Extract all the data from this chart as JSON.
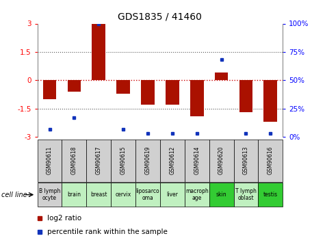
{
  "title": "GDS1835 / 41460",
  "samples": [
    "GSM90611",
    "GSM90618",
    "GSM90617",
    "GSM90615",
    "GSM90619",
    "GSM90612",
    "GSM90614",
    "GSM90620",
    "GSM90613",
    "GSM90616"
  ],
  "cell_lines": [
    "B lymph\nocyte",
    "brain",
    "breast",
    "cervix",
    "liposarco\noma",
    "liver",
    "macroph\nage",
    "skin",
    "T lymph\noblast",
    "testis"
  ],
  "cell_line_colors": [
    "#d0d0d0",
    "#c0f0c0",
    "#c0f0c0",
    "#c0f0c0",
    "#c0f0c0",
    "#c0f0c0",
    "#c0f0c0",
    "#33cc33",
    "#c0f0c0",
    "#33cc33"
  ],
  "sample_box_color": "#d0d0d0",
  "log2_ratio": [
    -1.0,
    -0.6,
    3.0,
    -0.7,
    -1.3,
    -1.3,
    -1.9,
    0.4,
    -1.7,
    -2.2
  ],
  "percentile_rank": [
    7,
    17,
    100,
    7,
    3,
    3,
    3,
    68,
    3,
    3
  ],
  "ylim": [
    -3,
    3
  ],
  "yticks_left": [
    -3,
    -1.5,
    0,
    1.5,
    3
  ],
  "yticks_right": [
    0,
    25,
    50,
    75,
    100
  ],
  "bar_color": "#aa1100",
  "dot_color": "#1133bb",
  "zero_line_color": "#cc0000",
  "grid_color": "#555555",
  "bg_color": "#ffffff",
  "title_fontsize": 10,
  "tick_fontsize": 7.5,
  "legend_fontsize": 7.5,
  "bar_width": 0.55
}
